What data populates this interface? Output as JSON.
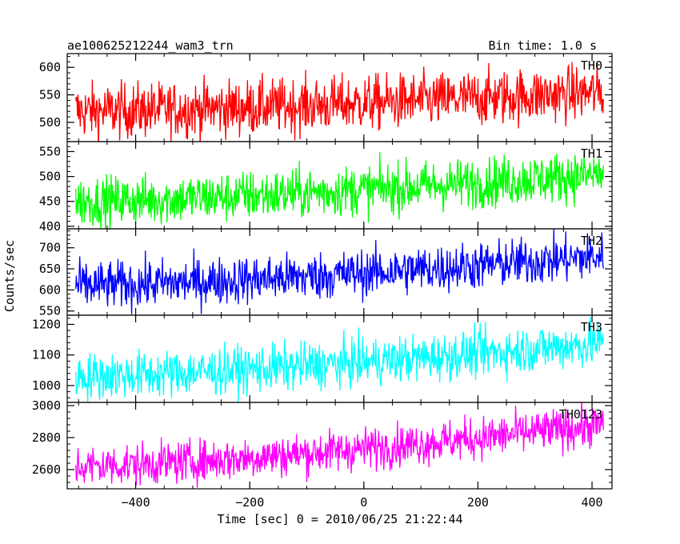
{
  "chart_data": {
    "type": "line",
    "title": "ae100625212244_wam3_trn",
    "subtitle": "Bin time: 1.0 s",
    "xlabel": "Time [sec] 0 = 2010/06/25 21:22:44",
    "ylabel": "Counts/sec",
    "xlim": [
      -520,
      435
    ],
    "x_range_data": [
      -505,
      420
    ],
    "x_ticks": [
      -400,
      -200,
      0,
      200,
      400
    ],
    "x_tick_labels": [
      "−400",
      "−200",
      "0",
      "200",
      "400"
    ],
    "grid": false,
    "series": [
      {
        "name": "TH0",
        "color": "#ff0000",
        "ylim": [
          465,
          625
        ],
        "y_ticks": [
          500,
          550,
          600
        ],
        "y_tick_labels": [
          "500",
          "550",
          "600"
        ],
        "start": 520,
        "end": 555,
        "spread": 25
      },
      {
        "name": "TH1",
        "color": "#00ff00",
        "ylim": [
          395,
          570
        ],
        "y_ticks": [
          400,
          450,
          500,
          550
        ],
        "y_tick_labels": [
          "400",
          "450",
          "500",
          "550"
        ],
        "start": 450,
        "end": 505,
        "spread": 25
      },
      {
        "name": "TH2",
        "color": "#0000ff",
        "ylim": [
          540,
          745
        ],
        "y_ticks": [
          550,
          600,
          650,
          700
        ],
        "y_tick_labels": [
          "550",
          "600",
          "650",
          "700"
        ],
        "start": 610,
        "end": 680,
        "spread": 28
      },
      {
        "name": "TH3",
        "color": "#00ffff",
        "ylim": [
          945,
          1230
        ],
        "y_ticks": [
          1000,
          1100,
          1200
        ],
        "y_tick_labels": [
          "1000",
          "1100",
          "1200"
        ],
        "start": 1030,
        "end": 1140,
        "spread": 38
      },
      {
        "name": "TH0123",
        "color": "#ff00ff",
        "ylim": [
          2480,
          3020
        ],
        "y_ticks": [
          2600,
          2800,
          3000
        ],
        "y_tick_labels": [
          "2600",
          "2800",
          "3000"
        ],
        "start": 2620,
        "end": 2880,
        "spread": 65
      }
    ]
  }
}
